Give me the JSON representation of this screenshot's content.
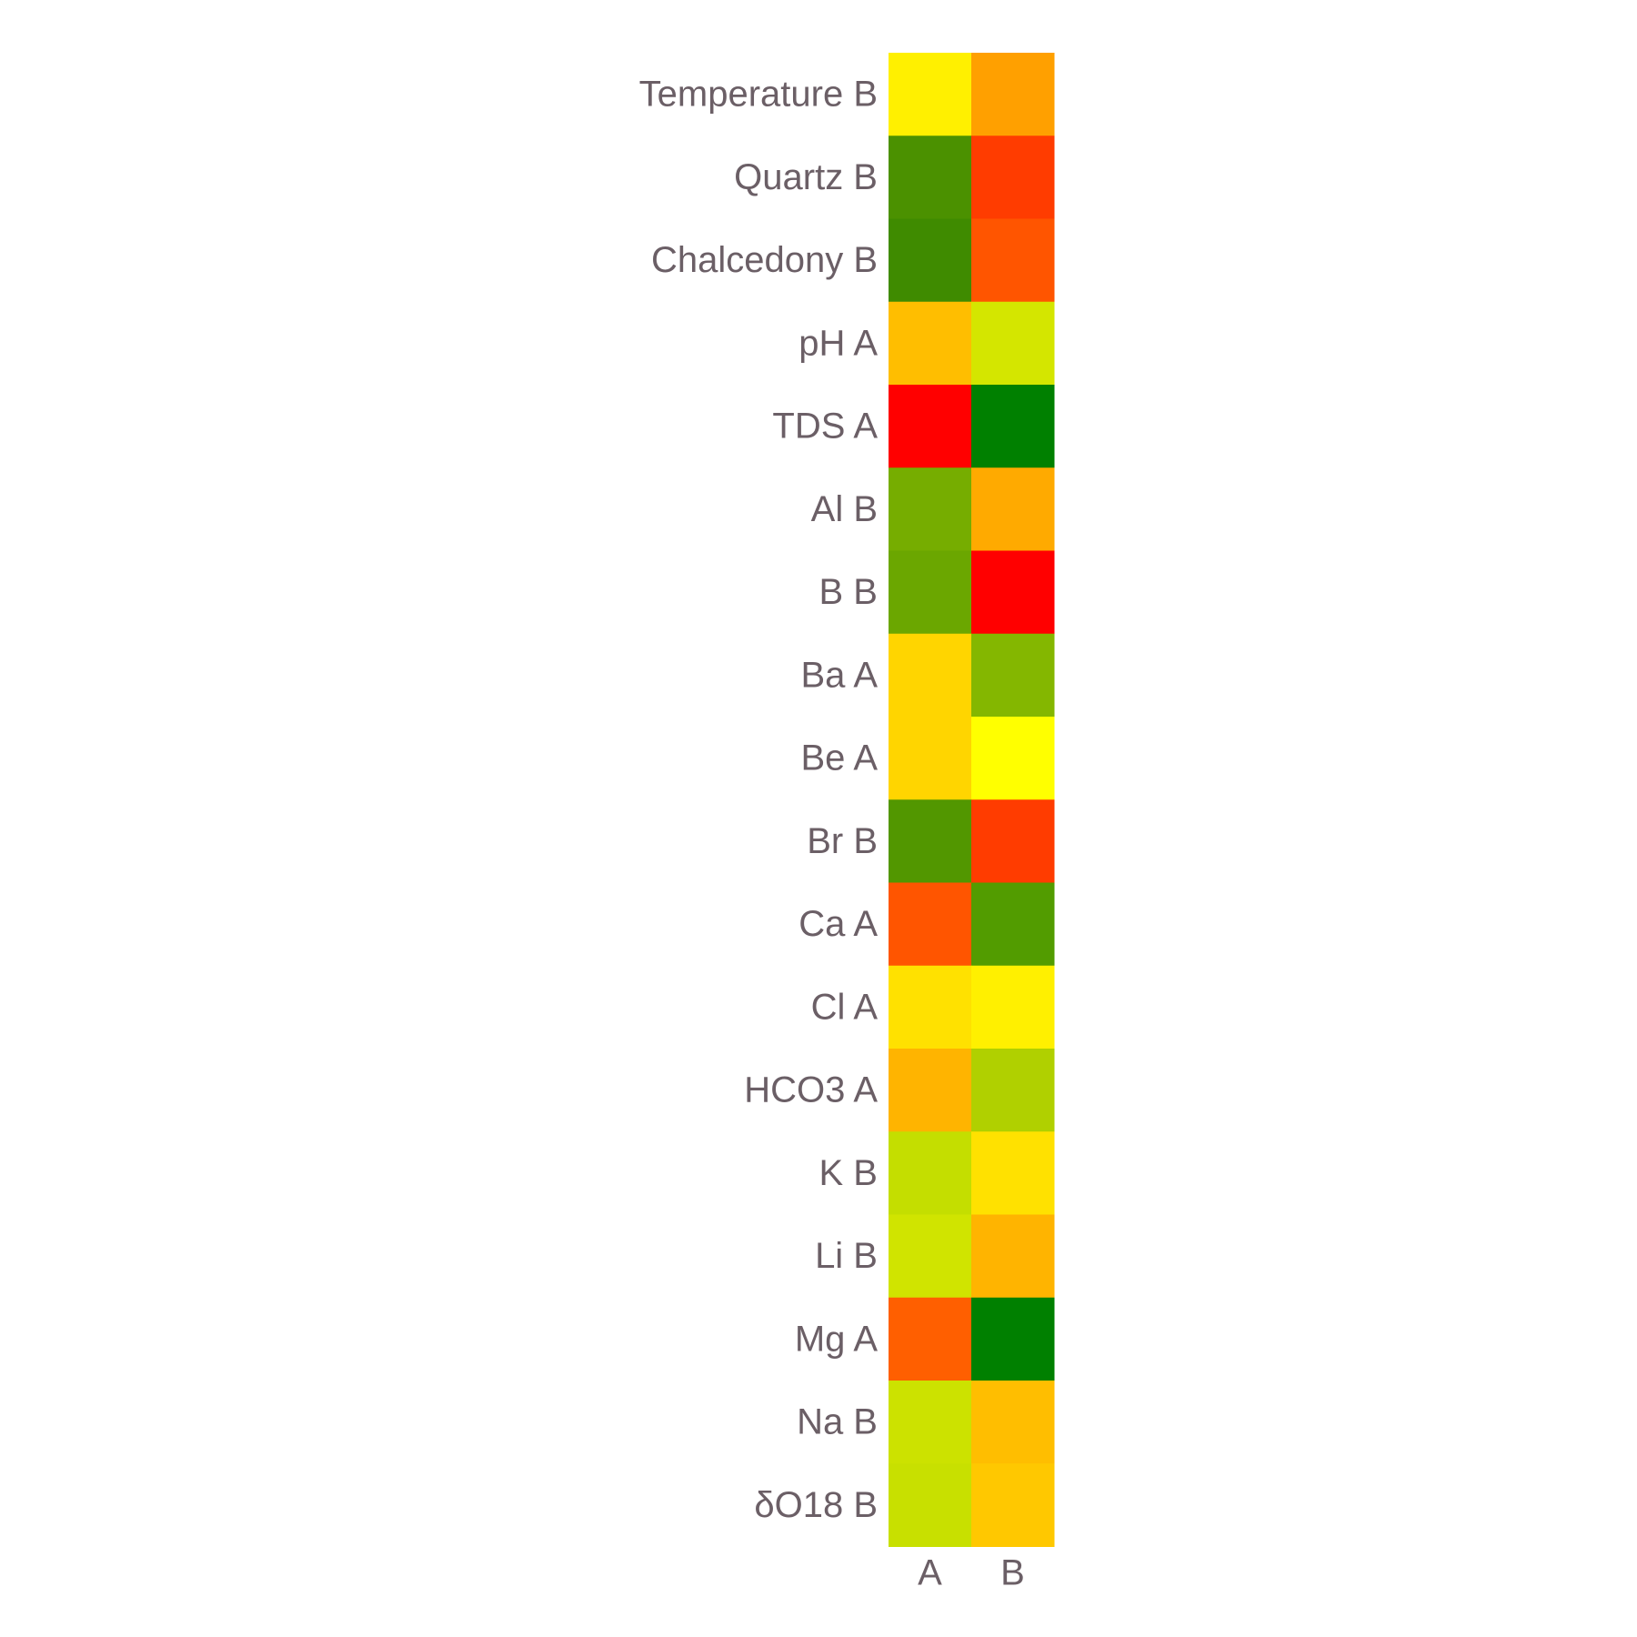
{
  "chart_data": {
    "type": "heatmap",
    "title": "",
    "xlabel": "",
    "ylabel": "",
    "x_categories": [
      "A",
      "B"
    ],
    "y_categories": [
      "Temperature B",
      "Quartz B",
      "Chalcedony B",
      "pH A",
      "TDS A",
      "Al B",
      "B B",
      "Ba A",
      "Be A",
      "Br B",
      "Ca A",
      "Cl A",
      "HCO3 A",
      "K B",
      "Li B",
      "Mg A",
      "Na B",
      "δO18 B"
    ],
    "cell_colors": [
      [
        "#fff000",
        "#ffa000"
      ],
      [
        "#4b9100",
        "#ff3c00"
      ],
      [
        "#3f8b00",
        "#ff5500"
      ],
      [
        "#ffbe00",
        "#d4e600"
      ],
      [
        "#ff0000",
        "#008000"
      ],
      [
        "#76ad00",
        "#ffaa00"
      ],
      [
        "#6ba700",
        "#ff0000"
      ],
      [
        "#ffd500",
        "#84b700"
      ],
      [
        "#ffd500",
        "#ffff00"
      ],
      [
        "#529700",
        "#ff3c00"
      ],
      [
        "#ff5500",
        "#529c00"
      ],
      [
        "#ffe100",
        "#fff000"
      ],
      [
        "#ffb400",
        "#b0d000"
      ],
      [
        "#c4de00",
        "#ffe100"
      ],
      [
        "#d0e400",
        "#ffb400"
      ],
      [
        "#ff5f00",
        "#008000"
      ],
      [
        "#cce200",
        "#ffbe00"
      ],
      [
        "#c8e000",
        "#ffc800"
      ]
    ],
    "legend": "none",
    "grid": false
  }
}
